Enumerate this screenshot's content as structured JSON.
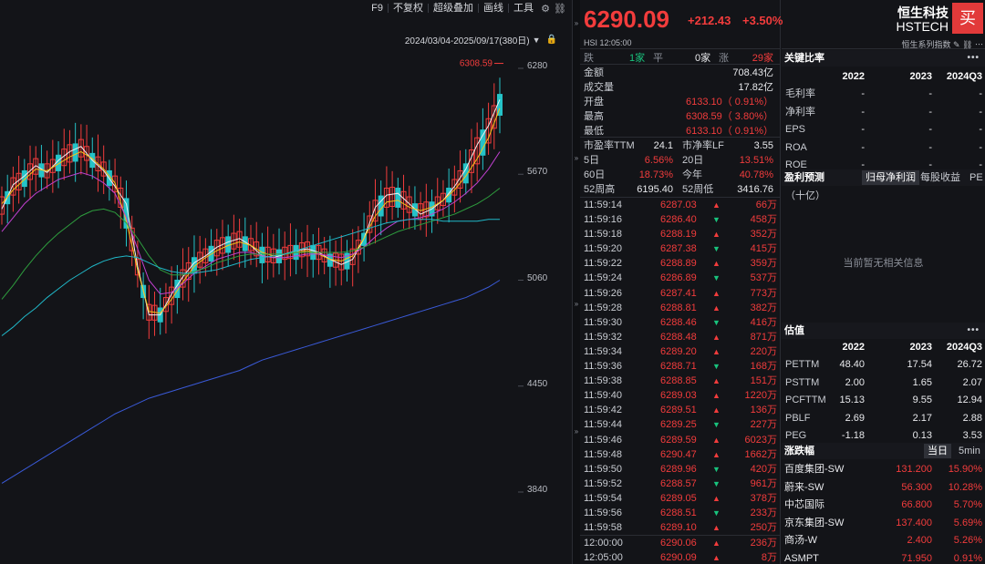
{
  "toolbar": {
    "items": [
      "F9",
      "不复权",
      "超级叠加",
      "画线",
      "工具"
    ],
    "icons": [
      "gear-icon",
      "link-icon"
    ]
  },
  "chart_meta": {
    "range_label": "2024/03/04-2025/09/17(380日)",
    "high_marker": "6308.59"
  },
  "chart_data": {
    "type": "candlestick",
    "yticks": [
      6280,
      5670,
      5060,
      4450,
      3840
    ],
    "ylim": [
      3640,
      6430
    ],
    "ma_lines": [
      {
        "color": "#f0f0f0",
        "values": [
          5470,
          5610,
          5660,
          5720,
          5680,
          5750,
          5800,
          5830,
          5750,
          5690,
          5600,
          5500,
          5140,
          4860,
          4860,
          4980,
          5080,
          5160,
          5200,
          5250,
          5280,
          5300,
          5260,
          5200,
          5190,
          5210,
          5230,
          5240,
          5220,
          5180,
          5150,
          5180,
          5300,
          5480,
          5550,
          5560,
          5500,
          5440,
          5470,
          5520,
          5600,
          5700,
          5840,
          5950,
          6100
        ]
      },
      {
        "color": "#f5c518",
        "values": [
          5500,
          5580,
          5640,
          5700,
          5690,
          5730,
          5770,
          5800,
          5760,
          5700,
          5620,
          5400,
          5120,
          4880,
          4870,
          4950,
          5050,
          5140,
          5190,
          5230,
          5260,
          5280,
          5260,
          5220,
          5200,
          5210,
          5220,
          5230,
          5210,
          5180,
          5170,
          5200,
          5300,
          5430,
          5510,
          5520,
          5480,
          5460,
          5480,
          5520,
          5580,
          5660,
          5760,
          5880,
          6050
        ]
      },
      {
        "color": "#c040d0",
        "values": [
          5340,
          5420,
          5500,
          5560,
          5600,
          5640,
          5660,
          5680,
          5660,
          5620,
          5560,
          5420,
          5240,
          5060,
          4980,
          4990,
          5040,
          5100,
          5140,
          5180,
          5200,
          5220,
          5220,
          5200,
          5190,
          5190,
          5200,
          5210,
          5210,
          5200,
          5190,
          5210,
          5250,
          5310,
          5360,
          5400,
          5410,
          5420,
          5440,
          5470,
          5510,
          5560,
          5620,
          5700,
          5800
        ]
      },
      {
        "color": "#2e9d3e",
        "values": [
          4950,
          5030,
          5120,
          5200,
          5270,
          5330,
          5380,
          5430,
          5460,
          5470,
          5450,
          5390,
          5300,
          5200,
          5120,
          5090,
          5090,
          5110,
          5130,
          5160,
          5180,
          5200,
          5210,
          5210,
          5210,
          5210,
          5220,
          5220,
          5220,
          5220,
          5220,
          5230,
          5250,
          5280,
          5310,
          5340,
          5360,
          5380,
          5400,
          5420,
          5440,
          5470,
          5500,
          5540,
          5590
        ]
      },
      {
        "color": "#20b8c8",
        "values": [
          4740,
          4790,
          4850,
          4900,
          4960,
          5010,
          5060,
          5100,
          5140,
          5170,
          5190,
          5200,
          5190,
          5160,
          5130,
          5110,
          5100,
          5100,
          5110,
          5120,
          5140,
          5160,
          5180,
          5190,
          5200,
          5210,
          5230,
          5250,
          5270,
          5290,
          5310,
          5330,
          5350,
          5370,
          5390,
          5400,
          5410,
          5410,
          5410,
          5400,
          5400,
          5400,
          5400,
          5410,
          5410
        ]
      },
      {
        "color": "#3a5ad8",
        "values": [
          3890,
          3930,
          3970,
          4010,
          4050,
          4090,
          4130,
          4170,
          4210,
          4250,
          4290,
          4320,
          4350,
          4380,
          4400,
          4420,
          4440,
          4460,
          4480,
          4500,
          4520,
          4540,
          4570,
          4600,
          4620,
          4640,
          4660,
          4680,
          4700,
          4720,
          4740,
          4760,
          4780,
          4800,
          4820,
          4840,
          4860,
          4880,
          4900,
          4920,
          4940,
          4960,
          4990,
          5020,
          5060
        ]
      }
    ]
  },
  "quote": {
    "price": "6290.09",
    "change": "+212.43",
    "pct": "+3.50%",
    "sub": "HSI 12:05:00",
    "counts": {
      "down_label": "跌",
      "down": "1家",
      "flat_label": "平",
      "flat": "0家",
      "up_label": "涨",
      "up": "29家"
    },
    "stats": [
      {
        "label": "金额",
        "value": "708.43亿"
      },
      {
        "label": "成交量",
        "value": "17.82亿"
      },
      {
        "label": "开盘",
        "value": "6133.10（ 0.91%）"
      },
      {
        "label": "最高",
        "value": "6308.59（ 3.80%）"
      },
      {
        "label": "最低",
        "value": "6133.10（ 0.91%）"
      }
    ],
    "pairs": [
      {
        "l1": "市盈率TTM",
        "v1": "24.1",
        "l2": "市净率LF",
        "v2": "3.55",
        "c1": "white",
        "c2": "white"
      },
      {
        "l1": "5日",
        "v1": "6.56%",
        "l2": "20日",
        "v2": "13.51%",
        "c1": "red",
        "c2": "red"
      },
      {
        "l1": "60日",
        "v1": "18.73%",
        "l2": "今年",
        "v2": "40.78%",
        "c1": "red",
        "c2": "red"
      },
      {
        "l1": "52周高",
        "v1": "6195.40",
        "l2": "52周低",
        "v2": "3416.76",
        "c1": "white",
        "c2": "white"
      }
    ],
    "ticks": [
      {
        "t": "11:59:14",
        "p": "6287.03",
        "d": "up",
        "v": "66万"
      },
      {
        "t": "11:59:16",
        "p": "6286.40",
        "d": "down",
        "v": "458万"
      },
      {
        "t": "11:59:18",
        "p": "6288.19",
        "d": "up",
        "v": "352万"
      },
      {
        "t": "11:59:20",
        "p": "6287.38",
        "d": "down",
        "v": "415万"
      },
      {
        "t": "11:59:22",
        "p": "6288.89",
        "d": "up",
        "v": "359万"
      },
      {
        "t": "11:59:24",
        "p": "6286.89",
        "d": "down",
        "v": "537万"
      },
      {
        "t": "11:59:26",
        "p": "6287.41",
        "d": "up",
        "v": "773万"
      },
      {
        "t": "11:59:28",
        "p": "6288.81",
        "d": "up",
        "v": "382万"
      },
      {
        "t": "11:59:30",
        "p": "6288.46",
        "d": "down",
        "v": "416万"
      },
      {
        "t": "11:59:32",
        "p": "6288.48",
        "d": "up",
        "v": "871万"
      },
      {
        "t": "11:59:34",
        "p": "6289.20",
        "d": "up",
        "v": "220万"
      },
      {
        "t": "11:59:36",
        "p": "6288.71",
        "d": "down",
        "v": "168万"
      },
      {
        "t": "11:59:38",
        "p": "6288.85",
        "d": "up",
        "v": "151万"
      },
      {
        "t": "11:59:40",
        "p": "6289.03",
        "d": "up",
        "v": "1220万"
      },
      {
        "t": "11:59:42",
        "p": "6289.51",
        "d": "up",
        "v": "136万"
      },
      {
        "t": "11:59:44",
        "p": "6289.25",
        "d": "down",
        "v": "227万"
      },
      {
        "t": "11:59:46",
        "p": "6289.59",
        "d": "up",
        "v": "6023万"
      },
      {
        "t": "11:59:48",
        "p": "6290.47",
        "d": "up",
        "v": "1662万"
      },
      {
        "t": "11:59:50",
        "p": "6289.96",
        "d": "down",
        "v": "420万"
      },
      {
        "t": "11:59:52",
        "p": "6288.57",
        "d": "down",
        "v": "961万"
      },
      {
        "t": "11:59:54",
        "p": "6289.05",
        "d": "up",
        "v": "378万"
      },
      {
        "t": "11:59:56",
        "p": "6288.51",
        "d": "down",
        "v": "233万"
      },
      {
        "t": "11:59:58",
        "p": "6289.10",
        "d": "up",
        "v": "250万"
      },
      {
        "t": "12:00:00",
        "p": "6290.06",
        "d": "up",
        "v": "236万"
      },
      {
        "t": "12:05:00",
        "p": "6290.09",
        "d": "up",
        "v": "8万"
      }
    ]
  },
  "right": {
    "name": "恒生科技",
    "code": "HSTECH",
    "buy": "买",
    "sub": "恒生系列指数",
    "ratios": {
      "title": "关键比率",
      "years": [
        "2022",
        "2023",
        "2024Q3"
      ],
      "rows": [
        {
          "label": "毛利率",
          "v": [
            "-",
            "-",
            "-"
          ]
        },
        {
          "label": "净利率",
          "v": [
            "-",
            "-",
            "-"
          ]
        },
        {
          "label": "EPS",
          "v": [
            "-",
            "-",
            "-"
          ]
        },
        {
          "label": "ROA",
          "v": [
            "-",
            "-",
            "-"
          ]
        },
        {
          "label": "ROE",
          "v": [
            "-",
            "-",
            "-"
          ]
        }
      ]
    },
    "forecast": {
      "title": "盈利预测",
      "tabs": [
        "归母净利润",
        "每股收益",
        "PE"
      ],
      "unit": "（十亿）",
      "empty": "当前暂无相关信息"
    },
    "valuation": {
      "title": "估值",
      "years": [
        "2022",
        "2023",
        "2024Q3"
      ],
      "rows": [
        {
          "label": "PETTM",
          "v": [
            "48.40",
            "17.54",
            "26.72"
          ]
        },
        {
          "label": "PSTTM",
          "v": [
            "2.00",
            "1.65",
            "2.07"
          ]
        },
        {
          "label": "PCFTTM",
          "v": [
            "15.13",
            "9.55",
            "12.94"
          ]
        },
        {
          "label": "PBLF",
          "v": [
            "2.69",
            "2.17",
            "2.88"
          ]
        },
        {
          "label": "PEG",
          "v": [
            "-1.18",
            "0.13",
            "3.53"
          ]
        }
      ]
    },
    "movers": {
      "title": "涨跌幅",
      "tabs": [
        "当日",
        "5min"
      ],
      "rows": [
        {
          "name": "百度集团-SW",
          "price": "131.200",
          "pct": "15.90%"
        },
        {
          "name": "蔚来-SW",
          "price": "56.300",
          "pct": "10.28%"
        },
        {
          "name": "中芯国际",
          "price": "66.800",
          "pct": "5.70%"
        },
        {
          "name": "京东集团-SW",
          "price": "137.400",
          "pct": "5.69%"
        },
        {
          "name": "商汤-W",
          "price": "2.400",
          "pct": "5.26%"
        },
        {
          "name": "ASMPT",
          "price": "71.950",
          "pct": "0.91%"
        }
      ]
    }
  }
}
